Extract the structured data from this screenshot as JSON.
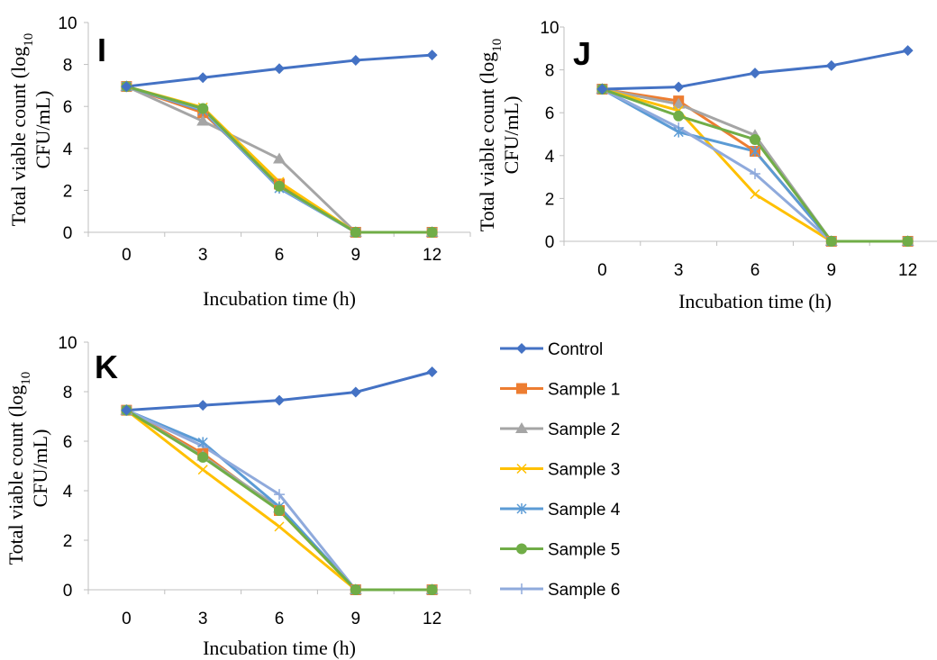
{
  "legend": {
    "series": [
      {
        "name": "Control",
        "color": "#4472C4",
        "marker": "diamond"
      },
      {
        "name": "Sample 1",
        "color": "#ED7D31",
        "marker": "square"
      },
      {
        "name": "Sample 2",
        "color": "#A5A5A5",
        "marker": "triangle"
      },
      {
        "name": "Sample 3",
        "color": "#FFC000",
        "marker": "x"
      },
      {
        "name": "Sample 4",
        "color": "#5B9BD5",
        "marker": "star"
      },
      {
        "name": "Sample 5",
        "color": "#70AD47",
        "marker": "circle"
      },
      {
        "name": "Sample 6",
        "color": "#8FAADC",
        "marker": "plus"
      }
    ]
  },
  "chart_data": [
    {
      "panel": "I",
      "type": "line",
      "x": [
        0,
        3,
        6,
        9,
        12
      ],
      "xlabel": "Incubation time (h)",
      "ylabel_line1": "Total viable count (log",
      "ylabel_sub": "10",
      "ylabel_line2": "CFU/mL)",
      "ylim": [
        0,
        10
      ],
      "yticks": [
        0,
        2,
        4,
        6,
        8,
        10
      ],
      "series": [
        {
          "name": "Control",
          "values": [
            6.95,
            7.37,
            7.8,
            8.2,
            8.45
          ]
        },
        {
          "name": "Sample 1",
          "values": [
            6.95,
            5.7,
            2.3,
            0,
            0
          ]
        },
        {
          "name": "Sample 2",
          "values": [
            6.95,
            5.3,
            3.5,
            0,
            0
          ]
        },
        {
          "name": "Sample 3",
          "values": [
            6.95,
            5.95,
            2.4,
            0,
            0
          ]
        },
        {
          "name": "Sample 4",
          "values": [
            6.95,
            5.8,
            2.1,
            0,
            0
          ]
        },
        {
          "name": "Sample 5",
          "values": [
            6.95,
            5.9,
            2.2,
            0,
            0
          ]
        },
        {
          "name": "Sample 6",
          "values": [
            6.95,
            5.85,
            2.15,
            0,
            0
          ]
        }
      ]
    },
    {
      "panel": "J",
      "type": "line",
      "x": [
        0,
        3,
        6,
        9,
        12
      ],
      "xlabel": "Incubation time (h)",
      "ylabel_line1": "Total viable count (log",
      "ylabel_sub": "10",
      "ylabel_line2": "CFU/mL)",
      "ylim": [
        0,
        10
      ],
      "yticks": [
        0,
        2,
        4,
        6,
        8,
        10
      ],
      "series": [
        {
          "name": "Control",
          "values": [
            7.1,
            7.2,
            7.85,
            8.2,
            8.9
          ]
        },
        {
          "name": "Sample 1",
          "values": [
            7.1,
            6.55,
            4.2,
            0,
            0
          ]
        },
        {
          "name": "Sample 2",
          "values": [
            7.1,
            6.4,
            4.95,
            0,
            0
          ]
        },
        {
          "name": "Sample 3",
          "values": [
            7.1,
            6.1,
            2.2,
            0,
            0
          ]
        },
        {
          "name": "Sample 4",
          "values": [
            7.1,
            5.1,
            4.2,
            0,
            0
          ]
        },
        {
          "name": "Sample 5",
          "values": [
            7.1,
            5.85,
            4.75,
            0,
            0
          ]
        },
        {
          "name": "Sample 6",
          "values": [
            7.1,
            5.3,
            3.15,
            0,
            0
          ]
        }
      ]
    },
    {
      "panel": "K",
      "type": "line",
      "x": [
        0,
        3,
        6,
        9,
        12
      ],
      "xlabel": "Incubation time (h)",
      "ylabel_line1": "Total viable count (log",
      "ylabel_sub": "10",
      "ylabel_line2": "CFU/mL)",
      "ylim": [
        0,
        10
      ],
      "yticks": [
        0,
        2,
        4,
        6,
        8,
        10
      ],
      "series": [
        {
          "name": "Control",
          "values": [
            7.25,
            7.45,
            7.65,
            7.98,
            8.8
          ]
        },
        {
          "name": "Sample 1",
          "values": [
            7.25,
            5.5,
            3.2,
            0,
            0
          ]
        },
        {
          "name": "Sample 2",
          "values": [
            7.25,
            5.4,
            3.3,
            0,
            0
          ]
        },
        {
          "name": "Sample 3",
          "values": [
            7.25,
            4.85,
            2.55,
            0,
            0
          ]
        },
        {
          "name": "Sample 4",
          "values": [
            7.25,
            5.95,
            3.35,
            0,
            0
          ]
        },
        {
          "name": "Sample 5",
          "values": [
            7.25,
            5.35,
            3.2,
            0,
            0
          ]
        },
        {
          "name": "Sample 6",
          "values": [
            7.25,
            5.8,
            3.85,
            0,
            0
          ]
        }
      ]
    }
  ]
}
